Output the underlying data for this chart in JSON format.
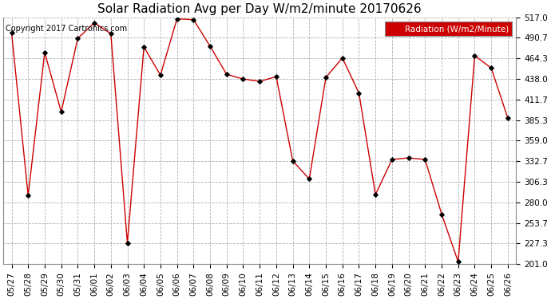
{
  "title": "Solar Radiation Avg per Day W/m2/minute 20170626",
  "copyright": "Copyright 2017 Cartronics.com",
  "legend_label": "Radiation (W/m2/Minute)",
  "dates": [
    "05/27",
    "05/28",
    "05/29",
    "05/30",
    "05/31",
    "06/01",
    "06/02",
    "06/03",
    "06/04",
    "06/05",
    "06/06",
    "06/07",
    "06/08",
    "06/09",
    "06/10",
    "06/11",
    "06/12",
    "06/13",
    "06/14",
    "06/15",
    "06/16",
    "06/17",
    "06/18",
    "06/19",
    "06/20",
    "06/21",
    "06/22",
    "06/23",
    "06/24",
    "06/25",
    "06/26"
  ],
  "values": [
    497,
    289,
    472,
    396,
    490,
    510,
    496,
    228,
    479,
    443,
    515,
    514,
    480,
    444,
    438,
    435,
    441,
    333,
    310,
    440,
    465,
    420,
    290,
    335,
    337,
    335,
    265,
    204,
    468,
    452,
    388
  ],
  "ylim": [
    201.0,
    517.0
  ],
  "yticks": [
    201.0,
    227.3,
    253.7,
    280.0,
    306.3,
    332.7,
    359.0,
    385.3,
    411.7,
    438.0,
    464.3,
    490.7,
    517.0
  ],
  "line_color": "#cc0000",
  "marker_color": "#000000",
  "background_color": "#ffffff",
  "grid_color": "#b0b0b0",
  "legend_bg": "#cc0000",
  "legend_text_color": "#ffffff",
  "title_fontsize": 11,
  "copyright_fontsize": 7,
  "tick_fontsize": 7.5
}
